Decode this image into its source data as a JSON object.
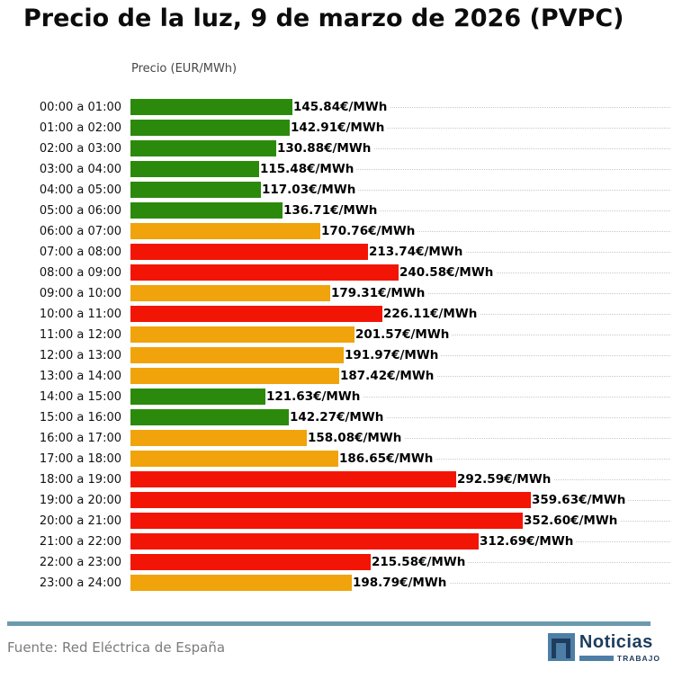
{
  "title": "Precio de la luz, 9 de marzo de 2026 (PVPC)",
  "axis_label": "Precio (EUR/MWh)",
  "footer": {
    "source": "Fuente: Red Eléctrica de España",
    "logo_name": "Noticias",
    "logo_sub": "TRABAJO"
  },
  "colors": {
    "green": "#2b8a0b",
    "orange": "#f0a30a",
    "red": "#f21505",
    "divider": "#6c9aad",
    "gridline": "#c9c9c9",
    "logo_navy": "#1d3c5e",
    "logo_blue": "#4d7fa6",
    "source_text": "#7b7b7b"
  },
  "chart_data": {
    "type": "bar",
    "orientation": "horizontal",
    "title": "Precio de la luz, 9 de marzo de 2026 (PVPC)",
    "xlabel": "Precio (EUR/MWh)",
    "unit_suffix": "€/MWh",
    "xlim": [
      0,
      400
    ],
    "grid": "dotted horizontal guide per row",
    "legend": "none",
    "categories": [
      "00:00 a 01:00",
      "01:00 a 02:00",
      "02:00 a 03:00",
      "03:00 a 04:00",
      "04:00 a 05:00",
      "05:00 a 06:00",
      "06:00 a 07:00",
      "07:00 a 08:00",
      "08:00 a 09:00",
      "09:00 a 10:00",
      "10:00 a 11:00",
      "11:00 a 12:00",
      "12:00 a 13:00",
      "13:00 a 14:00",
      "14:00 a 15:00",
      "15:00 a 16:00",
      "16:00 a 17:00",
      "17:00 a 18:00",
      "18:00 a 19:00",
      "19:00 a 20:00",
      "20:00 a 21:00",
      "21:00 a 22:00",
      "22:00 a 23:00",
      "23:00 a 24:00"
    ],
    "values": [
      145.84,
      142.91,
      130.88,
      115.48,
      117.03,
      136.71,
      170.76,
      213.74,
      240.58,
      179.31,
      226.11,
      201.57,
      191.97,
      187.42,
      121.63,
      142.27,
      158.08,
      186.65,
      292.59,
      359.63,
      352.6,
      312.69,
      215.58,
      198.79
    ],
    "bar_colors": [
      "green",
      "green",
      "green",
      "green",
      "green",
      "green",
      "orange",
      "red",
      "red",
      "orange",
      "red",
      "orange",
      "orange",
      "orange",
      "green",
      "green",
      "orange",
      "orange",
      "red",
      "red",
      "red",
      "red",
      "red",
      "orange"
    ]
  }
}
